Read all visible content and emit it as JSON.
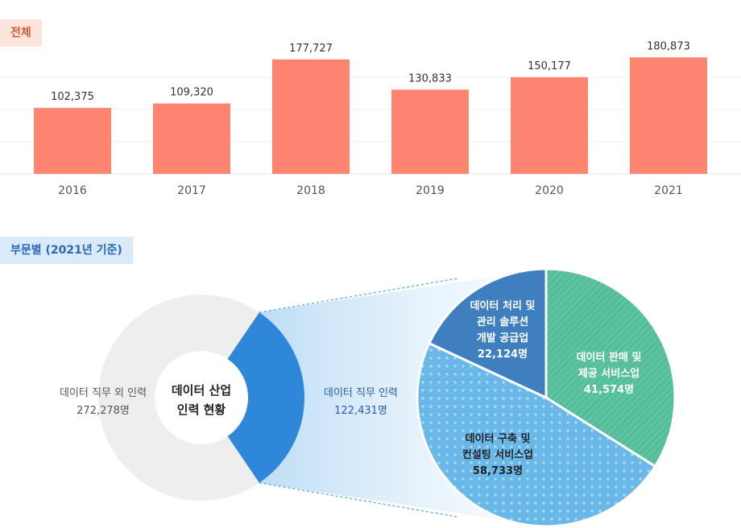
{
  "header_total": "전체",
  "header_section": "부문별 (2021년 기준)",
  "chart_data": [
    {
      "type": "bar",
      "categories": [
        "2016",
        "2017",
        "2018",
        "2019",
        "2020",
        "2021"
      ],
      "values": [
        102375,
        109320,
        177727,
        130833,
        150177,
        180873
      ],
      "value_labels": [
        "102,375",
        "109,320",
        "177,727",
        "130,833",
        "150,177",
        "180,873"
      ],
      "color": "#fd8471"
    },
    {
      "type": "pie",
      "title_lines": [
        "데이터 산업",
        "인력 현황"
      ],
      "slices": [
        {
          "label": "데이터 직무 외 인력",
          "value": 272278,
          "value_label": "272,278명",
          "color": "#eeeeee"
        },
        {
          "label": "데이터 직무 인력",
          "value": 122431,
          "value_label": "122,431명",
          "color": "#2f87d9"
        }
      ]
    },
    {
      "type": "pie",
      "title": "데이터 직무 인력",
      "slices": [
        {
          "label_lines": [
            "데이터 판매 및",
            "제공 서비스업"
          ],
          "value": 41574,
          "value_label": "41,574명",
          "color": "#5cc3a0"
        },
        {
          "label_lines": [
            "데이터 구축 및",
            "컨설팅 서비스업"
          ],
          "value": 58733,
          "value_label": "58,733명",
          "color": "#6ab8e8"
        },
        {
          "label_lines": [
            "데이터 처리 및",
            "관리 솔루션",
            "개발 공급업"
          ],
          "value": 22124,
          "value_label": "22,124명",
          "color": "#3f7fbf"
        }
      ]
    }
  ]
}
